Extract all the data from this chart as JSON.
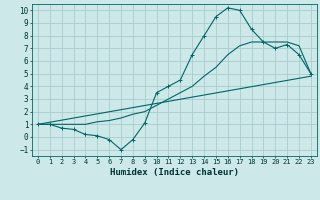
{
  "title": "",
  "xlabel": "Humidex (Indice chaleur)",
  "ylabel": "",
  "bg_color": "#cce8e8",
  "grid_color": "#aacccc",
  "line_color": "#006666",
  "xlim": [
    -0.5,
    23.5
  ],
  "ylim": [
    -1.5,
    10.5
  ],
  "xticks": [
    0,
    1,
    2,
    3,
    4,
    5,
    6,
    7,
    8,
    9,
    10,
    11,
    12,
    13,
    14,
    15,
    16,
    17,
    18,
    19,
    20,
    21,
    22,
    23
  ],
  "yticks": [
    -1,
    0,
    1,
    2,
    3,
    4,
    5,
    6,
    7,
    8,
    9,
    10
  ],
  "line1_x": [
    0,
    1,
    2,
    3,
    4,
    5,
    6,
    7,
    8,
    9,
    10,
    11,
    12,
    13,
    14,
    15,
    16,
    17,
    18,
    19,
    20,
    21,
    22,
    23
  ],
  "line1_y": [
    1,
    1,
    0.7,
    0.6,
    0.2,
    0.1,
    -0.2,
    -1.0,
    -0.2,
    1.1,
    3.5,
    4.0,
    4.5,
    6.5,
    8.0,
    9.5,
    10.2,
    10.0,
    8.5,
    7.5,
    7.0,
    7.3,
    6.5,
    5.0
  ],
  "line2_x": [
    0,
    1,
    2,
    3,
    4,
    5,
    6,
    7,
    8,
    9,
    10,
    11,
    12,
    13,
    14,
    15,
    16,
    17,
    18,
    19,
    20,
    21,
    22,
    23
  ],
  "line2_y": [
    1.0,
    1.0,
    1.0,
    1.0,
    1.0,
    1.2,
    1.3,
    1.5,
    1.8,
    2.0,
    2.5,
    3.0,
    3.5,
    4.0,
    4.8,
    5.5,
    6.5,
    7.2,
    7.5,
    7.5,
    7.5,
    7.5,
    7.2,
    5.0
  ],
  "line3_x": [
    0,
    23
  ],
  "line3_y": [
    1.0,
    4.8
  ]
}
